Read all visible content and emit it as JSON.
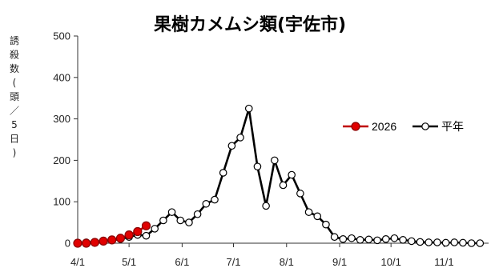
{
  "chart_data": {
    "type": "line",
    "title": "果樹カメムシ類(宇佐市)",
    "ylabel_chars": [
      "誘",
      "殺",
      "数",
      "(",
      "頭",
      "／",
      "5",
      "日",
      ")"
    ],
    "ylim": [
      0,
      500
    ],
    "yticks": [
      "0",
      "100",
      "200",
      "300",
      "400",
      "500"
    ],
    "x_ticks": [
      {
        "label": "4/1",
        "day": 0
      },
      {
        "label": "5/1",
        "day": 30
      },
      {
        "label": "6/1",
        "day": 61
      },
      {
        "label": "7/1",
        "day": 91
      },
      {
        "label": "8/1",
        "day": 122
      },
      {
        "label": "9/1",
        "day": 153
      },
      {
        "label": "10/1",
        "day": 183
      },
      {
        "label": "11/1",
        "day": 214
      }
    ],
    "x_range": [
      0,
      240
    ],
    "grid": false,
    "legend_position": "right",
    "series": [
      {
        "name": "2026",
        "color": "#c00000",
        "marker_fill": "#e00000",
        "x": [
          0,
          5,
          10,
          15,
          20,
          25,
          30,
          35,
          40
        ],
        "y": [
          0,
          0,
          2,
          5,
          8,
          12,
          20,
          28,
          42
        ]
      },
      {
        "name": "平年",
        "color": "#000000",
        "marker_fill": "#ffffff",
        "x": [
          0,
          5,
          10,
          15,
          20,
          25,
          30,
          35,
          40,
          45,
          50,
          55,
          60,
          65,
          70,
          75,
          80,
          85,
          90,
          95,
          100,
          105,
          110,
          115,
          120,
          125,
          130,
          135,
          140,
          145,
          150,
          155,
          160,
          165,
          170,
          175,
          180,
          185,
          190,
          195,
          200,
          205,
          210,
          215,
          220,
          225,
          230,
          235
        ],
        "y": [
          0,
          2,
          3,
          5,
          7,
          10,
          15,
          20,
          18,
          35,
          55,
          75,
          55,
          50,
          70,
          95,
          105,
          170,
          235,
          255,
          325,
          185,
          90,
          200,
          140,
          165,
          120,
          75,
          65,
          45,
          15,
          10,
          12,
          8,
          9,
          7,
          10,
          12,
          8,
          5,
          3,
          2,
          2,
          1,
          2,
          1,
          0,
          0
        ]
      }
    ]
  }
}
